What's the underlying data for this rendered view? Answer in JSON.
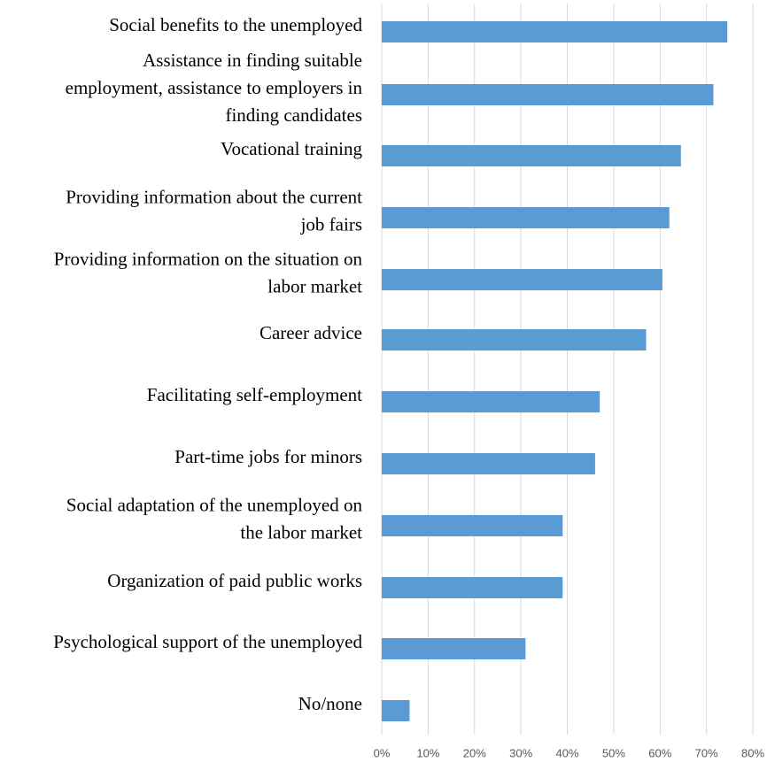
{
  "chart_data": {
    "type": "bar",
    "orientation": "horizontal",
    "title": "",
    "xlabel": "",
    "ylabel": "",
    "bar_color": "#5b9bd5",
    "grid": true,
    "xlim": [
      0,
      80
    ],
    "x_ticks": [
      "0%",
      "10%",
      "20%",
      "30%",
      "40%",
      "50%",
      "60%",
      "70%",
      "80%"
    ],
    "categories": [
      [
        "Social benefits to the unemployed"
      ],
      [
        "Assistance in finding suitable",
        "employment, assistance to employers in",
        "finding candidates"
      ],
      [
        "Vocational training"
      ],
      [
        "Providing information about the current",
        "job fairs"
      ],
      [
        "Providing information on the situation on",
        "labor market"
      ],
      [
        "Career advice"
      ],
      [
        "Facilitating self-employment"
      ],
      [
        "Part-time jobs for minors"
      ],
      [
        "Social adaptation of the unemployed on",
        "the labor market"
      ],
      [
        "Organization of paid public works"
      ],
      [
        "Psychological support of the unemployed"
      ],
      [
        "No/none"
      ]
    ],
    "values": [
      74.5,
      71.5,
      64.5,
      62,
      60.5,
      57,
      47,
      46,
      39,
      39,
      31,
      6
    ]
  }
}
